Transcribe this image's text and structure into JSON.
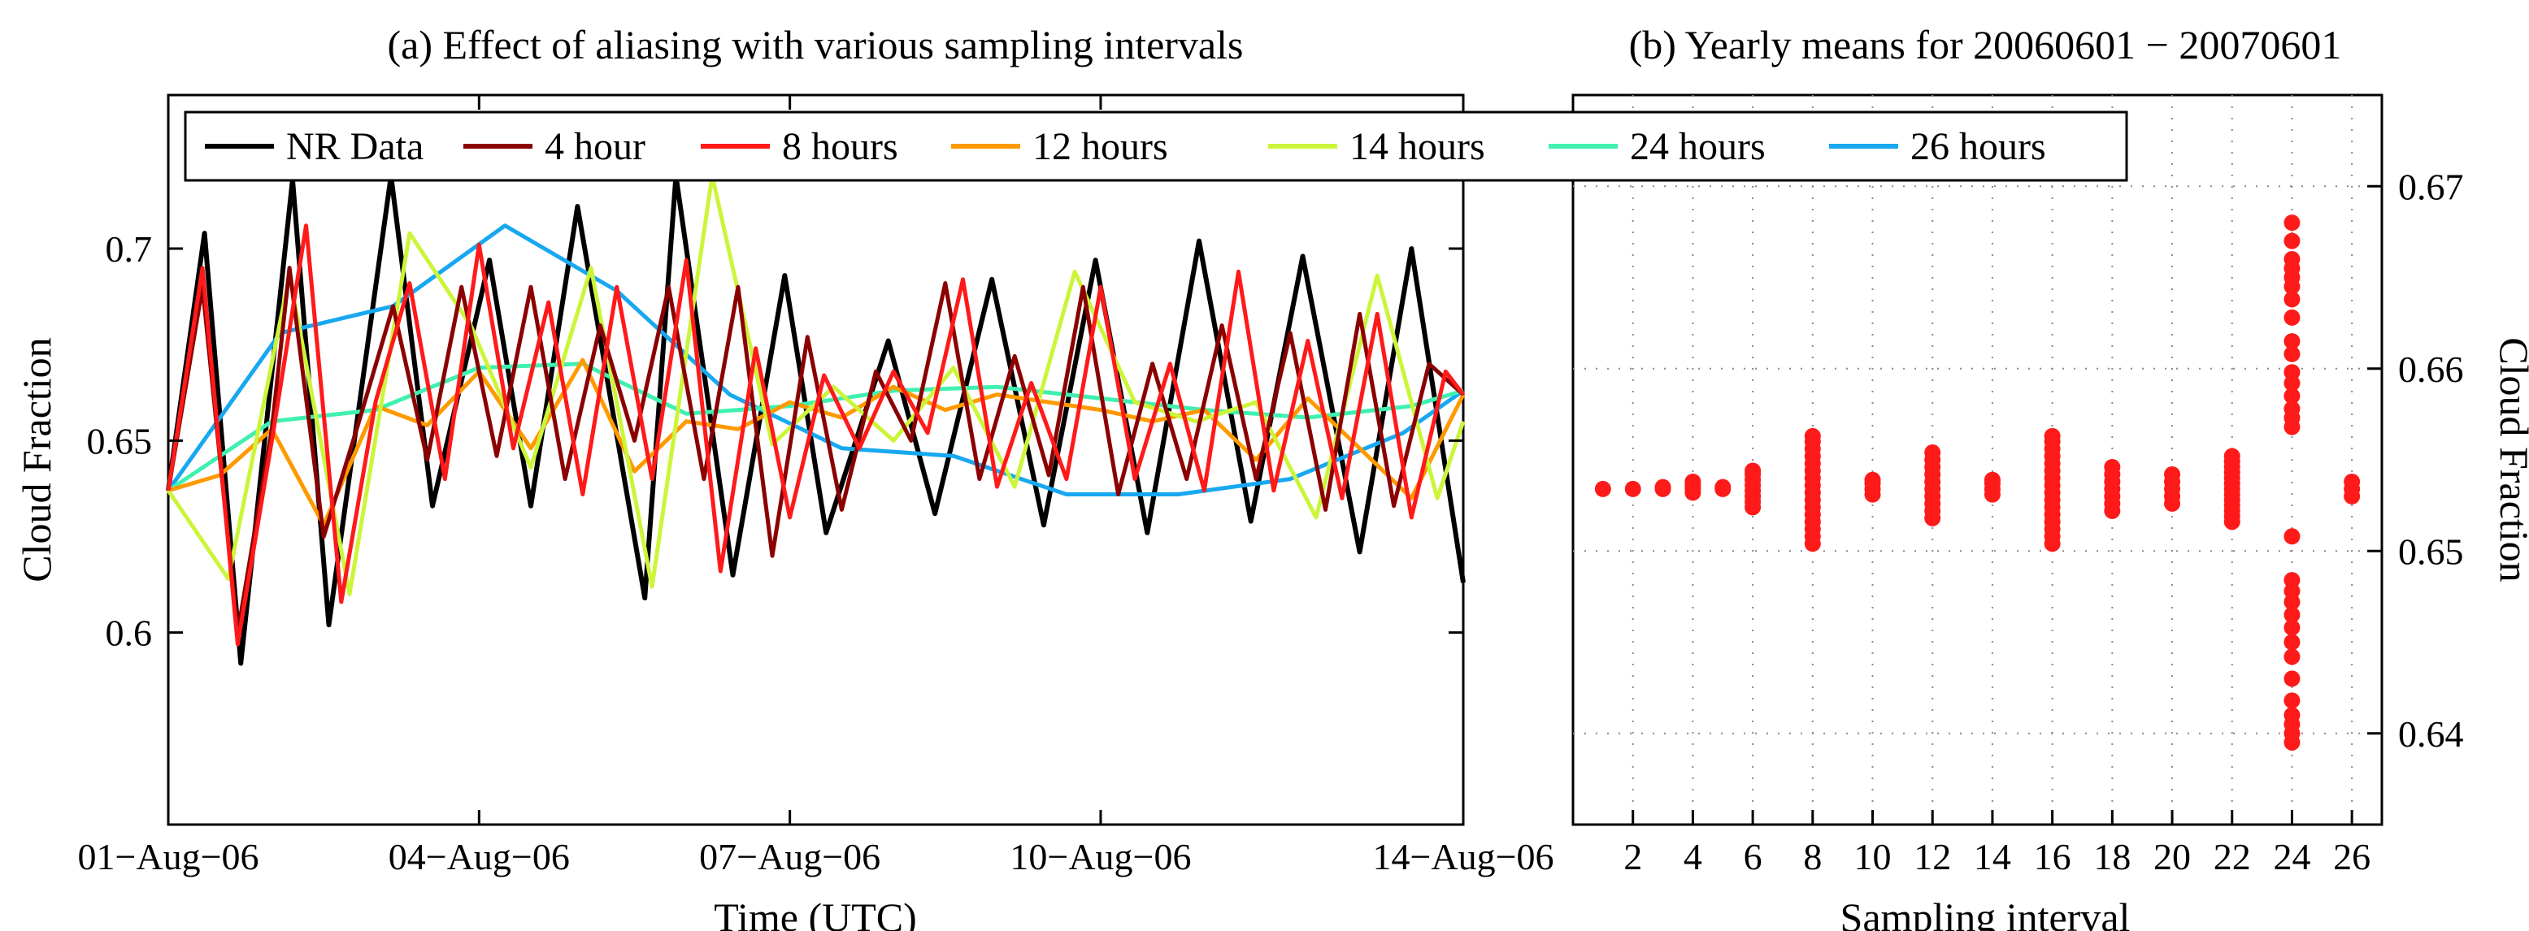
{
  "colors": {
    "NR Data": "#000000",
    "4 hour": "#8b0000",
    "8 hours": "#ff1a1a",
    "12 hours": "#ff9900",
    "14 hours": "#ccf53a",
    "24 hours": "#40f0b0",
    "26 hours": "#18a8f0",
    "scatter": "#ff1a1a"
  },
  "chart_data": [
    {
      "type": "line",
      "title": "(a) Effect of aliasing with various sampling intervals",
      "xlabel": "Time (UTC)",
      "ylabel": "Cloud Fraction",
      "x_ticks": [
        "01−Aug−06",
        "04−Aug−06",
        "07−Aug−06",
        "10−Aug−06",
        "14−Aug−06"
      ],
      "x_tick_days": [
        0,
        3,
        6,
        9,
        12.5
      ],
      "xlim": [
        0,
        12.5
      ],
      "ylim": [
        0.55,
        0.74
      ],
      "y_ticks": [
        "0.6",
        "0.65",
        "0.7"
      ],
      "y_tick_values": [
        0.6,
        0.65,
        0.7
      ],
      "legend_position": "top",
      "series": [
        {
          "name": "NR Data",
          "x": [
            0,
            0.35,
            0.7,
            1.2,
            1.55,
            2.15,
            2.55,
            3.1,
            3.5,
            3.95,
            4.6,
            4.9,
            5.45,
            5.95,
            6.35,
            6.95,
            7.4,
            7.95,
            8.45,
            8.95,
            9.45,
            9.95,
            10.45,
            10.95,
            11.5,
            12.0,
            12.5
          ],
          "y": [
            0.637,
            0.704,
            0.592,
            0.718,
            0.602,
            0.719,
            0.633,
            0.697,
            0.633,
            0.711,
            0.609,
            0.719,
            0.615,
            0.693,
            0.626,
            0.676,
            0.631,
            0.692,
            0.628,
            0.697,
            0.626,
            0.702,
            0.629,
            0.698,
            0.621,
            0.7,
            0.613
          ]
        },
        {
          "name": "4 hour",
          "x": [
            0,
            0.33,
            0.67,
            1.0,
            1.17,
            1.5,
            1.83,
            2.17,
            2.5,
            2.83,
            3.17,
            3.5,
            3.83,
            4.17,
            4.5,
            4.83,
            5.17,
            5.5,
            5.83,
            6.17,
            6.5,
            6.83,
            7.17,
            7.5,
            7.83,
            8.17,
            8.5,
            8.83,
            9.17,
            9.5,
            9.83,
            10.17,
            10.5,
            10.83,
            11.17,
            11.5,
            11.83,
            12.17,
            12.5
          ],
          "y": [
            0.637,
            0.69,
            0.6,
            0.653,
            0.695,
            0.625,
            0.654,
            0.685,
            0.645,
            0.69,
            0.646,
            0.69,
            0.64,
            0.68,
            0.65,
            0.69,
            0.64,
            0.69,
            0.62,
            0.677,
            0.632,
            0.668,
            0.65,
            0.691,
            0.64,
            0.672,
            0.641,
            0.69,
            0.636,
            0.67,
            0.64,
            0.68,
            0.64,
            0.678,
            0.632,
            0.683,
            0.633,
            0.67,
            0.662
          ]
        },
        {
          "name": "8 hours",
          "x": [
            0,
            0.33,
            0.67,
            1.0,
            1.33,
            1.67,
            2.0,
            2.33,
            2.67,
            3.0,
            3.33,
            3.67,
            4.0,
            4.33,
            4.67,
            5.0,
            5.33,
            5.67,
            6.0,
            6.33,
            6.67,
            7.0,
            7.33,
            7.67,
            8.0,
            8.33,
            8.67,
            9.0,
            9.33,
            9.67,
            10.0,
            10.33,
            10.67,
            11.0,
            11.33,
            11.67,
            12.0,
            12.33,
            12.5
          ],
          "y": [
            0.637,
            0.695,
            0.597,
            0.65,
            0.706,
            0.608,
            0.66,
            0.691,
            0.64,
            0.701,
            0.648,
            0.686,
            0.636,
            0.69,
            0.64,
            0.697,
            0.616,
            0.674,
            0.63,
            0.667,
            0.648,
            0.668,
            0.652,
            0.692,
            0.638,
            0.665,
            0.64,
            0.69,
            0.64,
            0.67,
            0.637,
            0.694,
            0.637,
            0.676,
            0.635,
            0.683,
            0.63,
            0.668,
            0.662
          ]
        },
        {
          "name": "12 hours",
          "x": [
            0,
            0.5,
            1.0,
            1.5,
            2.0,
            2.5,
            3.0,
            3.5,
            4.0,
            4.5,
            5.0,
            5.5,
            6.0,
            6.5,
            7.0,
            7.5,
            8.0,
            8.5,
            9.0,
            9.5,
            10.0,
            10.5,
            11.0,
            11.5,
            12.0,
            12.5
          ],
          "y": [
            0.637,
            0.641,
            0.653,
            0.628,
            0.659,
            0.654,
            0.668,
            0.648,
            0.671,
            0.642,
            0.655,
            0.653,
            0.66,
            0.656,
            0.664,
            0.658,
            0.662,
            0.66,
            0.658,
            0.655,
            0.658,
            0.645,
            0.661,
            0.648,
            0.635,
            0.662
          ]
        },
        {
          "name": "14 hours",
          "x": [
            0,
            0.58,
            1.17,
            1.75,
            2.33,
            2.92,
            3.5,
            4.08,
            4.67,
            5.25,
            5.83,
            6.42,
            7.0,
            7.58,
            8.17,
            8.75,
            9.33,
            9.92,
            10.5,
            11.08,
            11.67,
            12.25,
            12.5
          ],
          "y": [
            0.637,
            0.614,
            0.693,
            0.61,
            0.704,
            0.68,
            0.643,
            0.695,
            0.612,
            0.719,
            0.649,
            0.664,
            0.65,
            0.669,
            0.638,
            0.694,
            0.66,
            0.655,
            0.66,
            0.63,
            0.693,
            0.635,
            0.655
          ]
        },
        {
          "name": "24 hours",
          "x": [
            0,
            1.0,
            2.0,
            3.0,
            4.0,
            5.0,
            6.0,
            7.0,
            8.0,
            9.0,
            10.0,
            11.0,
            12.0,
            12.5
          ],
          "y": [
            0.637,
            0.655,
            0.658,
            0.669,
            0.67,
            0.657,
            0.659,
            0.663,
            0.664,
            0.661,
            0.658,
            0.656,
            0.659,
            0.663
          ]
        },
        {
          "name": "26 hours",
          "x": [
            0,
            1.08,
            2.17,
            3.25,
            4.33,
            5.42,
            6.5,
            7.58,
            8.67,
            9.75,
            10.83,
            11.92,
            12.5
          ],
          "y": [
            0.637,
            0.678,
            0.685,
            0.706,
            0.689,
            0.662,
            0.648,
            0.646,
            0.636,
            0.636,
            0.64,
            0.652,
            0.663
          ]
        }
      ]
    },
    {
      "type": "scatter",
      "title": "(b) Yearly means for 20060601 − 20070601",
      "xlabel": "Sampling interval",
      "ylabel": "Cloud Fraction",
      "xlim": [
        0,
        27
      ],
      "ylim": [
        0.635,
        0.675
      ],
      "x_ticks": [
        "2",
        "4",
        "6",
        "8",
        "10",
        "12",
        "14",
        "16",
        "18",
        "20",
        "22",
        "24",
        "26"
      ],
      "x_tick_values": [
        2,
        4,
        6,
        8,
        10,
        12,
        14,
        16,
        18,
        20,
        22,
        24,
        26
      ],
      "y_ticks": [
        "0.64",
        "0.65",
        "0.66",
        "0.67"
      ],
      "y_tick_values": [
        0.64,
        0.65,
        0.66,
        0.67
      ],
      "grid": "dotted",
      "y_axis_side": "right",
      "points": [
        {
          "x": 1,
          "y": [
            0.6534
          ]
        },
        {
          "x": 2,
          "y": [
            0.6534
          ]
        },
        {
          "x": 3,
          "y": [
            0.6534,
            0.6535
          ]
        },
        {
          "x": 4,
          "y": [
            0.6532,
            0.6534,
            0.6536,
            0.6538
          ]
        },
        {
          "x": 5,
          "y": [
            0.6534,
            0.6535
          ]
        },
        {
          "x": 6,
          "y": [
            0.6524,
            0.6527,
            0.653,
            0.6533,
            0.6536,
            0.6539,
            0.6542,
            0.6544
          ]
        },
        {
          "x": 8,
          "y": [
            0.6504,
            0.6508,
            0.6512,
            0.6516,
            0.652,
            0.6524,
            0.6528,
            0.6532,
            0.6536,
            0.654,
            0.6544,
            0.6548,
            0.6552,
            0.6556,
            0.656,
            0.6563
          ]
        },
        {
          "x": 10,
          "y": [
            0.6531,
            0.6534,
            0.6537,
            0.6539
          ]
        },
        {
          "x": 12,
          "y": [
            0.6518,
            0.6522,
            0.6526,
            0.653,
            0.6534,
            0.6538,
            0.6542,
            0.6546,
            0.655,
            0.6554
          ]
        },
        {
          "x": 14,
          "y": [
            0.6531,
            0.6534,
            0.6537,
            0.6539
          ]
        },
        {
          "x": 16,
          "y": [
            0.6504,
            0.6508,
            0.6512,
            0.6516,
            0.652,
            0.6524,
            0.6528,
            0.6532,
            0.6536,
            0.654,
            0.6544,
            0.6548,
            0.6552,
            0.6556,
            0.656,
            0.6563
          ]
        },
        {
          "x": 18,
          "y": [
            0.6522,
            0.6526,
            0.653,
            0.6534,
            0.6538,
            0.6542,
            0.6546
          ]
        },
        {
          "x": 20,
          "y": [
            0.6526,
            0.653,
            0.6534,
            0.6538,
            0.6542
          ]
        },
        {
          "x": 22,
          "y": [
            0.6516,
            0.6519,
            0.6522,
            0.6525,
            0.6528,
            0.6531,
            0.6534,
            0.6537,
            0.654,
            0.6543,
            0.6546,
            0.6549,
            0.6552
          ]
        },
        {
          "x": 24,
          "y": [
            0.6395,
            0.64,
            0.6405,
            0.641,
            0.6418,
            0.643,
            0.6442,
            0.645,
            0.6458,
            0.6465,
            0.6472,
            0.6478,
            0.6484,
            0.6508,
            0.6568,
            0.6573,
            0.6578,
            0.6585,
            0.6592,
            0.6598,
            0.6608,
            0.6615,
            0.6628,
            0.6638,
            0.6645,
            0.665,
            0.6655,
            0.666,
            0.667,
            0.668
          ]
        },
        {
          "x": 26,
          "y": [
            0.653,
            0.6534,
            0.6538
          ]
        }
      ]
    }
  ]
}
